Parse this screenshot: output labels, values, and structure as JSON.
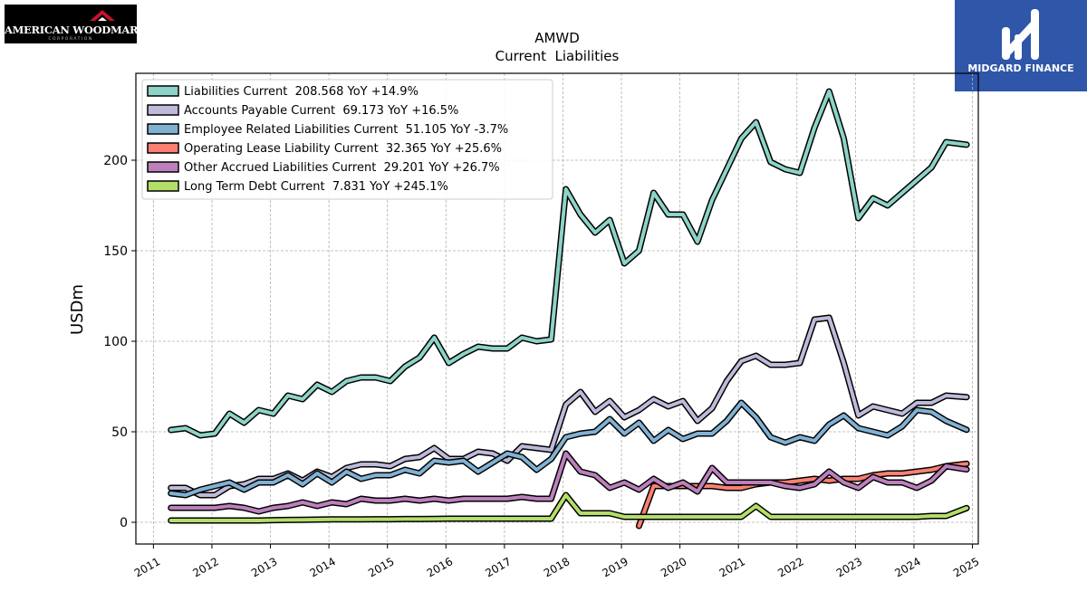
{
  "logos": {
    "left": {
      "text": "AMERICAN WOODMARK",
      "subtext": "CORPORATION"
    },
    "right": {
      "text": "MIDGARD FINANCE",
      "background": "#2f56a8"
    }
  },
  "chart_data": {
    "type": "line",
    "title": "AMWD",
    "subtitle": "Current  Liabilities",
    "xlabel": "",
    "ylabel": "USDm",
    "xlim": [
      2010.7,
      2025.1
    ],
    "ylim": [
      -12,
      248
    ],
    "x_ticks": [
      2011,
      2012,
      2013,
      2014,
      2015,
      2016,
      2017,
      2018,
      2019,
      2020,
      2021,
      2022,
      2023,
      2024,
      2025
    ],
    "y_ticks": [
      0,
      50,
      100,
      150,
      200
    ],
    "grid": true,
    "legend_position": "top-left",
    "series": [
      {
        "name": "Liabilities Current  208.568 YoY +14.9%",
        "color": "#8dd3c7",
        "points": [
          [
            2011.3,
            51
          ],
          [
            2011.55,
            52
          ],
          [
            2011.8,
            48
          ],
          [
            2012.05,
            49
          ],
          [
            2012.3,
            60
          ],
          [
            2012.55,
            55
          ],
          [
            2012.8,
            62
          ],
          [
            2013.05,
            60
          ],
          [
            2013.3,
            70
          ],
          [
            2013.55,
            68
          ],
          [
            2013.8,
            76
          ],
          [
            2014.05,
            72
          ],
          [
            2014.3,
            78
          ],
          [
            2014.55,
            80
          ],
          [
            2014.8,
            80
          ],
          [
            2015.05,
            78
          ],
          [
            2015.3,
            86
          ],
          [
            2015.55,
            91
          ],
          [
            2015.8,
            102
          ],
          [
            2016.05,
            88
          ],
          [
            2016.3,
            93
          ],
          [
            2016.55,
            97
          ],
          [
            2016.8,
            96
          ],
          [
            2017.05,
            96
          ],
          [
            2017.3,
            102
          ],
          [
            2017.55,
            100
          ],
          [
            2017.8,
            101
          ],
          [
            2018.05,
            184
          ],
          [
            2018.3,
            170
          ],
          [
            2018.55,
            160
          ],
          [
            2018.8,
            167
          ],
          [
            2019.05,
            143
          ],
          [
            2019.3,
            150
          ],
          [
            2019.55,
            182
          ],
          [
            2019.8,
            170
          ],
          [
            2020.05,
            170
          ],
          [
            2020.3,
            155
          ],
          [
            2020.55,
            178
          ],
          [
            2020.8,
            195
          ],
          [
            2021.05,
            212
          ],
          [
            2021.3,
            221
          ],
          [
            2021.55,
            199
          ],
          [
            2021.8,
            195
          ],
          [
            2022.05,
            193
          ],
          [
            2022.3,
            218
          ],
          [
            2022.55,
            238
          ],
          [
            2022.8,
            212
          ],
          [
            2023.05,
            168
          ],
          [
            2023.3,
            179
          ],
          [
            2023.55,
            175
          ],
          [
            2023.8,
            182
          ],
          [
            2024.05,
            189
          ],
          [
            2024.3,
            196
          ],
          [
            2024.55,
            210
          ],
          [
            2024.9,
            208.568
          ]
        ]
      },
      {
        "name": "Accounts Payable Current  69.173 YoY +16.5%",
        "color": "#bebada",
        "points": [
          [
            2011.3,
            19
          ],
          [
            2011.55,
            19
          ],
          [
            2011.8,
            15
          ],
          [
            2012.05,
            15
          ],
          [
            2012.3,
            20
          ],
          [
            2012.55,
            21
          ],
          [
            2012.8,
            24
          ],
          [
            2013.05,
            24
          ],
          [
            2013.3,
            27
          ],
          [
            2013.55,
            23
          ],
          [
            2013.8,
            28
          ],
          [
            2014.05,
            25
          ],
          [
            2014.3,
            30
          ],
          [
            2014.55,
            32
          ],
          [
            2014.8,
            32
          ],
          [
            2015.05,
            31
          ],
          [
            2015.3,
            35
          ],
          [
            2015.55,
            36
          ],
          [
            2015.8,
            41
          ],
          [
            2016.05,
            35
          ],
          [
            2016.3,
            35
          ],
          [
            2016.55,
            39
          ],
          [
            2016.8,
            38
          ],
          [
            2017.05,
            34
          ],
          [
            2017.3,
            42
          ],
          [
            2017.55,
            41
          ],
          [
            2017.8,
            40
          ],
          [
            2018.05,
            65
          ],
          [
            2018.3,
            72
          ],
          [
            2018.55,
            61
          ],
          [
            2018.8,
            67
          ],
          [
            2019.05,
            58
          ],
          [
            2019.3,
            62
          ],
          [
            2019.55,
            68
          ],
          [
            2019.8,
            64
          ],
          [
            2020.05,
            67
          ],
          [
            2020.3,
            56
          ],
          [
            2020.55,
            63
          ],
          [
            2020.8,
            78
          ],
          [
            2021.05,
            89
          ],
          [
            2021.3,
            92
          ],
          [
            2021.55,
            87
          ],
          [
            2021.8,
            87
          ],
          [
            2022.05,
            88
          ],
          [
            2022.3,
            112
          ],
          [
            2022.55,
            113
          ],
          [
            2022.8,
            88
          ],
          [
            2023.05,
            59
          ],
          [
            2023.3,
            64
          ],
          [
            2023.55,
            62
          ],
          [
            2023.8,
            60
          ],
          [
            2024.05,
            66
          ],
          [
            2024.3,
            66
          ],
          [
            2024.55,
            70
          ],
          [
            2024.9,
            69.173
          ]
        ]
      },
      {
        "name": "Employee Related Liabilities Current  51.105 YoY -3.7%",
        "color": "#80b1d3",
        "points": [
          [
            2011.3,
            16
          ],
          [
            2011.55,
            15
          ],
          [
            2011.8,
            18
          ],
          [
            2012.05,
            20
          ],
          [
            2012.3,
            22
          ],
          [
            2012.55,
            18
          ],
          [
            2012.8,
            22
          ],
          [
            2013.05,
            22
          ],
          [
            2013.3,
            26
          ],
          [
            2013.55,
            21
          ],
          [
            2013.8,
            27
          ],
          [
            2014.05,
            22
          ],
          [
            2014.3,
            28
          ],
          [
            2014.55,
            24
          ],
          [
            2014.8,
            26
          ],
          [
            2015.05,
            26
          ],
          [
            2015.3,
            29
          ],
          [
            2015.55,
            27
          ],
          [
            2015.8,
            34
          ],
          [
            2016.05,
            33
          ],
          [
            2016.3,
            34
          ],
          [
            2016.55,
            28
          ],
          [
            2016.8,
            33
          ],
          [
            2017.05,
            38
          ],
          [
            2017.3,
            36
          ],
          [
            2017.55,
            29
          ],
          [
            2017.8,
            35
          ],
          [
            2018.05,
            47
          ],
          [
            2018.3,
            49
          ],
          [
            2018.55,
            50
          ],
          [
            2018.8,
            57
          ],
          [
            2019.05,
            49
          ],
          [
            2019.3,
            55
          ],
          [
            2019.55,
            45
          ],
          [
            2019.8,
            51
          ],
          [
            2020.05,
            46
          ],
          [
            2020.3,
            49
          ],
          [
            2020.55,
            49
          ],
          [
            2020.8,
            56
          ],
          [
            2021.05,
            66
          ],
          [
            2021.3,
            58
          ],
          [
            2021.55,
            47
          ],
          [
            2021.8,
            44
          ],
          [
            2022.05,
            47
          ],
          [
            2022.3,
            45
          ],
          [
            2022.55,
            54
          ],
          [
            2022.8,
            59
          ],
          [
            2023.05,
            52
          ],
          [
            2023.3,
            50
          ],
          [
            2023.55,
            48
          ],
          [
            2023.8,
            53
          ],
          [
            2024.05,
            62
          ],
          [
            2024.3,
            61
          ],
          [
            2024.55,
            56
          ],
          [
            2024.9,
            51.105
          ]
        ]
      },
      {
        "name": "Operating Lease Liability Current  32.365 YoY +25.6%",
        "color": "#fb8072",
        "points": [
          [
            2019.3,
            -2
          ],
          [
            2019.55,
            20
          ],
          [
            2019.8,
            20
          ],
          [
            2020.05,
            20
          ],
          [
            2020.3,
            20
          ],
          [
            2020.55,
            20
          ],
          [
            2020.8,
            19
          ],
          [
            2021.05,
            19
          ],
          [
            2021.3,
            21
          ],
          [
            2021.55,
            22
          ],
          [
            2021.8,
            22
          ],
          [
            2022.05,
            23
          ],
          [
            2022.3,
            24
          ],
          [
            2022.55,
            23
          ],
          [
            2022.8,
            24
          ],
          [
            2023.05,
            24
          ],
          [
            2023.3,
            26
          ],
          [
            2023.55,
            27
          ],
          [
            2023.8,
            27
          ],
          [
            2024.05,
            28
          ],
          [
            2024.3,
            29
          ],
          [
            2024.55,
            31
          ],
          [
            2024.9,
            32.365
          ]
        ]
      },
      {
        "name": "Other Accrued Liabilities Current  29.201 YoY +26.7%",
        "color": "#bc80bd",
        "points": [
          [
            2011.3,
            8
          ],
          [
            2011.55,
            8
          ],
          [
            2011.8,
            8
          ],
          [
            2012.05,
            8
          ],
          [
            2012.3,
            9
          ],
          [
            2012.55,
            8
          ],
          [
            2012.8,
            6
          ],
          [
            2013.05,
            8
          ],
          [
            2013.3,
            9
          ],
          [
            2013.55,
            11
          ],
          [
            2013.8,
            9
          ],
          [
            2014.05,
            11
          ],
          [
            2014.3,
            10
          ],
          [
            2014.55,
            13
          ],
          [
            2014.8,
            12
          ],
          [
            2015.05,
            12
          ],
          [
            2015.3,
            13
          ],
          [
            2015.55,
            12
          ],
          [
            2015.8,
            13
          ],
          [
            2016.05,
            12
          ],
          [
            2016.3,
            13
          ],
          [
            2016.55,
            13
          ],
          [
            2016.8,
            13
          ],
          [
            2017.05,
            13
          ],
          [
            2017.3,
            14
          ],
          [
            2017.55,
            13
          ],
          [
            2017.8,
            13
          ],
          [
            2018.05,
            38
          ],
          [
            2018.3,
            28
          ],
          [
            2018.55,
            26
          ],
          [
            2018.8,
            19
          ],
          [
            2019.05,
            22
          ],
          [
            2019.3,
            18
          ],
          [
            2019.55,
            24
          ],
          [
            2019.8,
            19
          ],
          [
            2020.05,
            22
          ],
          [
            2020.3,
            17
          ],
          [
            2020.55,
            30
          ],
          [
            2020.8,
            22
          ],
          [
            2021.05,
            22
          ],
          [
            2021.3,
            22
          ],
          [
            2021.55,
            22
          ],
          [
            2021.8,
            20
          ],
          [
            2022.05,
            19
          ],
          [
            2022.3,
            21
          ],
          [
            2022.55,
            28
          ],
          [
            2022.8,
            22
          ],
          [
            2023.05,
            19
          ],
          [
            2023.3,
            25
          ],
          [
            2023.55,
            22
          ],
          [
            2023.8,
            22
          ],
          [
            2024.05,
            19
          ],
          [
            2024.3,
            23
          ],
          [
            2024.55,
            31
          ],
          [
            2024.9,
            29.201
          ]
        ]
      },
      {
        "name": "Long Term Debt Current  7.831 YoY +245.1%",
        "color": "#b3de69",
        "points": [
          [
            2011.3,
            1
          ],
          [
            2011.55,
            1
          ],
          [
            2011.8,
            1
          ],
          [
            2012.05,
            1
          ],
          [
            2012.3,
            1
          ],
          [
            2012.55,
            1
          ],
          [
            2012.8,
            1
          ],
          [
            2013.05,
            1.2
          ],
          [
            2013.3,
            1.3
          ],
          [
            2013.55,
            1.4
          ],
          [
            2013.8,
            1.5
          ],
          [
            2014.05,
            1.6
          ],
          [
            2014.3,
            1.6
          ],
          [
            2014.55,
            1.6
          ],
          [
            2014.8,
            1.7
          ],
          [
            2015.05,
            1.7
          ],
          [
            2015.3,
            1.8
          ],
          [
            2015.55,
            1.8
          ],
          [
            2015.8,
            1.9
          ],
          [
            2016.05,
            2
          ],
          [
            2016.3,
            2
          ],
          [
            2016.55,
            2
          ],
          [
            2016.8,
            2
          ],
          [
            2017.05,
            2
          ],
          [
            2017.3,
            2
          ],
          [
            2017.55,
            2
          ],
          [
            2017.8,
            2
          ],
          [
            2018.05,
            15
          ],
          [
            2018.3,
            5
          ],
          [
            2018.55,
            5
          ],
          [
            2018.8,
            5
          ],
          [
            2019.05,
            3
          ],
          [
            2019.3,
            3
          ],
          [
            2019.55,
            3
          ],
          [
            2019.8,
            3
          ],
          [
            2020.05,
            3
          ],
          [
            2020.3,
            3
          ],
          [
            2020.55,
            3
          ],
          [
            2020.8,
            3
          ],
          [
            2021.05,
            3
          ],
          [
            2021.3,
            9
          ],
          [
            2021.55,
            3
          ],
          [
            2021.8,
            3
          ],
          [
            2022.05,
            3
          ],
          [
            2022.3,
            3
          ],
          [
            2022.55,
            3
          ],
          [
            2022.8,
            3
          ],
          [
            2023.05,
            3
          ],
          [
            2023.3,
            3
          ],
          [
            2023.55,
            3
          ],
          [
            2023.8,
            3
          ],
          [
            2024.05,
            3
          ],
          [
            2024.3,
            3.5
          ],
          [
            2024.55,
            3.5
          ],
          [
            2024.9,
            7.831
          ]
        ]
      }
    ]
  }
}
